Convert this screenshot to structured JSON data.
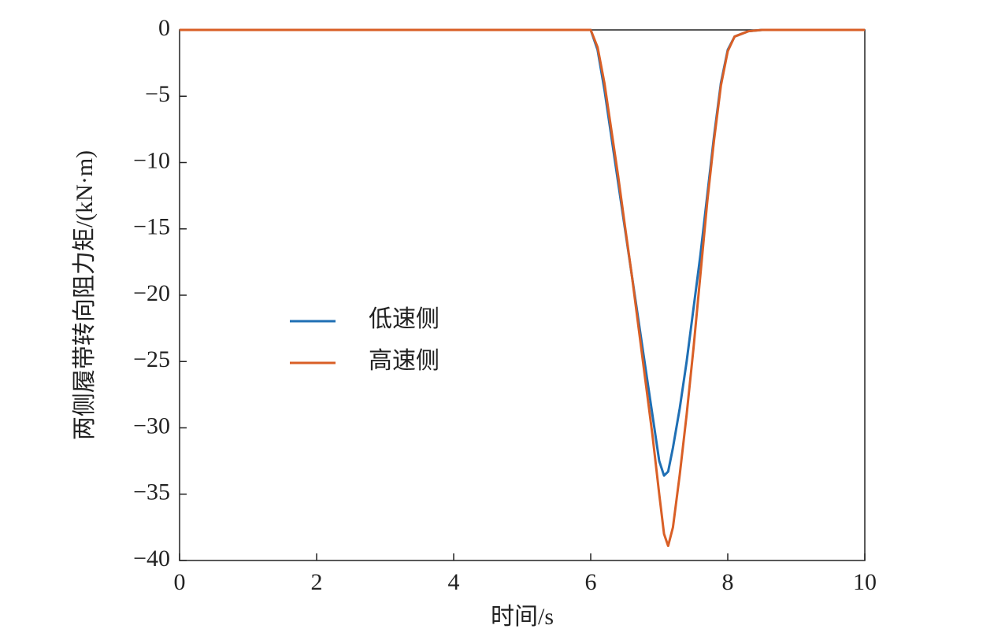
{
  "chart_data": {
    "type": "line",
    "xlabel": "时间/s",
    "ylabel": "两侧履带转向阻力矩/(kN·m)",
    "x": [
      0,
      6,
      6.1,
      6.2,
      6.3,
      6.4,
      6.5,
      6.6,
      6.7,
      6.8,
      6.9,
      7.0,
      7.07,
      7.13,
      7.2,
      7.3,
      7.4,
      7.5,
      7.6,
      7.7,
      7.8,
      7.9,
      8.0,
      8.1,
      8.3,
      8.5,
      10
    ],
    "series": [
      {
        "name": "低速侧",
        "color": "#1f6fb4",
        "values": [
          0,
          0,
          -1.5,
          -4.5,
          -8,
          -11.5,
          -15,
          -18.5,
          -22,
          -25.5,
          -29,
          -32.5,
          -33.6,
          -33.3,
          -31.5,
          -28.5,
          -25,
          -21,
          -17,
          -12.5,
          -8,
          -4,
          -1.5,
          -0.5,
          -0.1,
          0,
          0
        ]
      },
      {
        "name": "高速侧",
        "color": "#d95f26",
        "values": [
          0,
          0,
          -1.3,
          -4,
          -7.5,
          -11,
          -14.8,
          -18.5,
          -22.5,
          -26.5,
          -30.5,
          -35,
          -38,
          -38.9,
          -37.5,
          -33.5,
          -29,
          -24,
          -18.5,
          -13,
          -8.3,
          -4.2,
          -1.6,
          -0.5,
          -0.1,
          0,
          0
        ]
      }
    ],
    "xlim": [
      0,
      10
    ],
    "xticks": [
      0,
      2,
      4,
      6,
      8,
      10
    ],
    "ylim": [
      -40,
      0
    ],
    "yticks": [
      {
        "value": -40,
        "label": "−40"
      },
      {
        "value": -35,
        "label": "−35"
      },
      {
        "value": -30,
        "label": "−30"
      },
      {
        "value": -25,
        "label": "−25"
      },
      {
        "value": -20,
        "label": "−20"
      },
      {
        "value": -15,
        "label": "−15"
      },
      {
        "value": -10,
        "label": "−10"
      },
      {
        "value": -5,
        "label": "−5"
      },
      0
    ]
  }
}
